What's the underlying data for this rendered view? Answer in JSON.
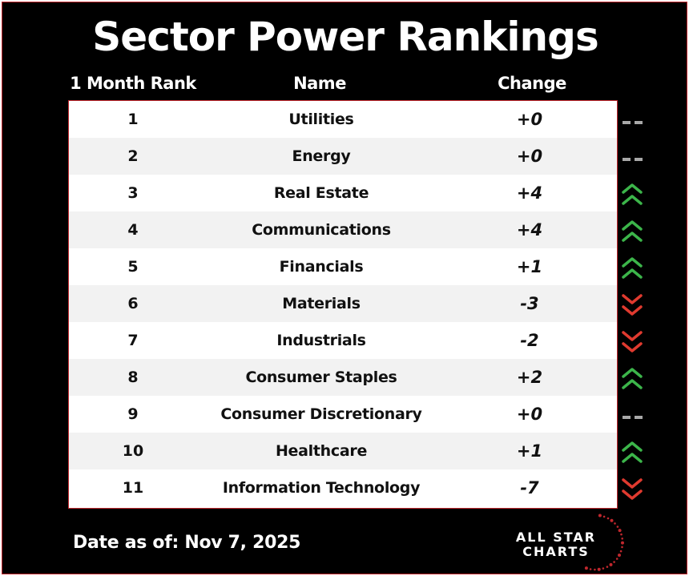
{
  "title": "Sector Power Rankings",
  "headers": {
    "rank": "1 Month Rank",
    "name": "Name",
    "change": "Change"
  },
  "rows": [
    {
      "rank": "1",
      "name": "Utilities",
      "change": "+0",
      "trend": "flat"
    },
    {
      "rank": "2",
      "name": "Energy",
      "change": "+0",
      "trend": "flat"
    },
    {
      "rank": "3",
      "name": "Real Estate",
      "change": "+4",
      "trend": "up"
    },
    {
      "rank": "4",
      "name": "Communications",
      "change": "+4",
      "trend": "up"
    },
    {
      "rank": "5",
      "name": "Financials",
      "change": "+1",
      "trend": "up"
    },
    {
      "rank": "6",
      "name": "Materials",
      "change": "-3",
      "trend": "down"
    },
    {
      "rank": "7",
      "name": "Industrials",
      "change": "-2",
      "trend": "down"
    },
    {
      "rank": "8",
      "name": "Consumer Staples",
      "change": "+2",
      "trend": "up"
    },
    {
      "rank": "9",
      "name": "Consumer Discretionary",
      "change": "+0",
      "trend": "flat"
    },
    {
      "rank": "10",
      "name": "Healthcare",
      "change": "+1",
      "trend": "up"
    },
    {
      "rank": "11",
      "name": "Information Technology",
      "change": "-7",
      "trend": "down"
    }
  ],
  "footer": {
    "date": "Date as of: Nov 7, 2025"
  },
  "logo": {
    "line1": "ALL STAR",
    "line2": "CHARTS"
  },
  "colors": {
    "up": "#3cb54a",
    "down": "#e03a2f",
    "flat": "#a8a8a8",
    "accent": "#c0272d"
  }
}
